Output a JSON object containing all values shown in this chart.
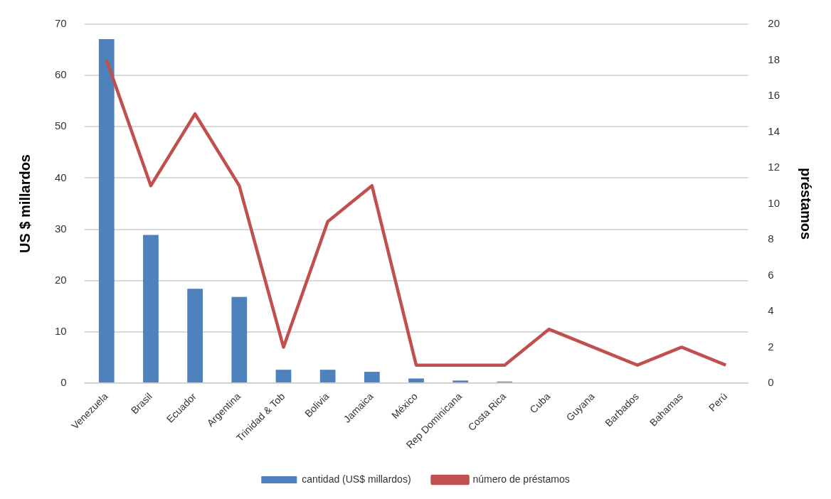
{
  "chart_data": {
    "type": "bar",
    "categories": [
      "Venezuela",
      "Brasil",
      "Ecuador",
      "Argentina",
      "Trinidad & Tob",
      "Bolivia",
      "Jamaica",
      "México",
      "Rep Dominicana",
      "Costa Rica",
      "Cuba",
      "Guyana",
      "Barbados",
      "Bahamas",
      "Perú"
    ],
    "series": [
      {
        "name": "cantidad (US$ millardos)",
        "color": "#4f81bd",
        "values": [
          67.1,
          28.9,
          18.4,
          16.8,
          2.6,
          2.6,
          2.2,
          0.9,
          0.5,
          0.3,
          0,
          0,
          0,
          0,
          0
        ]
      },
      {
        "name": "número de préstamos",
        "type": "line",
        "axis": "y2",
        "color": "#c0504d",
        "values": [
          18,
          11,
          15,
          11,
          2,
          9,
          11,
          1,
          1,
          1,
          3,
          2,
          1,
          2,
          1
        ]
      }
    ],
    "ylabel": "US $ millardos",
    "y2label": "préstamos",
    "ylim": [
      0,
      70
    ],
    "yticks": [
      0,
      10,
      20,
      30,
      40,
      50,
      60,
      70
    ],
    "y2lim": [
      0,
      20
    ],
    "y2ticks": [
      0,
      2,
      4,
      6,
      8,
      10,
      12,
      14,
      16,
      18,
      20
    ],
    "grid": "y",
    "legend": "bottom",
    "marker": "none"
  }
}
